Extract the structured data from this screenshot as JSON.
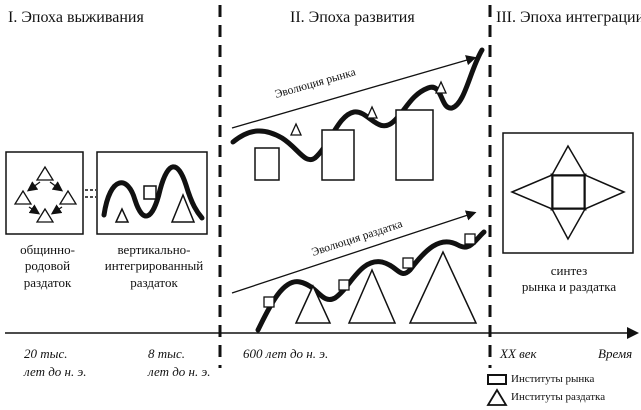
{
  "eras": [
    {
      "label": "I. Эпоха выживания"
    },
    {
      "label": "II. Эпоха развития"
    },
    {
      "label": "III. Эпоха интеграции"
    }
  ],
  "waves": {
    "market_label": "Эволюция рынка",
    "redistribution_label": "Эволюция раздатка"
  },
  "stages": [
    {
      "caption_lines": [
        "общинно-",
        "родовой",
        "раздаток"
      ]
    },
    {
      "caption_lines": [
        "вертикально-",
        "интегрированный",
        "раздаток"
      ]
    },
    {
      "caption_lines": [
        "синтез",
        "рынка и раздатка"
      ]
    }
  ],
  "timeline": {
    "ticks": [
      {
        "lines": [
          "20 тыс.",
          "лет до н. э."
        ]
      },
      {
        "lines": [
          "8 тыс.",
          "лет до н. э."
        ]
      },
      {
        "lines": [
          "600 лет до н. э."
        ]
      },
      {
        "lines": [
          "XX век"
        ]
      }
    ],
    "axis_label": "Время"
  },
  "legend": {
    "market_institutions": "Институты рынка",
    "redistribution_institutions": "Институты раздатка"
  }
}
